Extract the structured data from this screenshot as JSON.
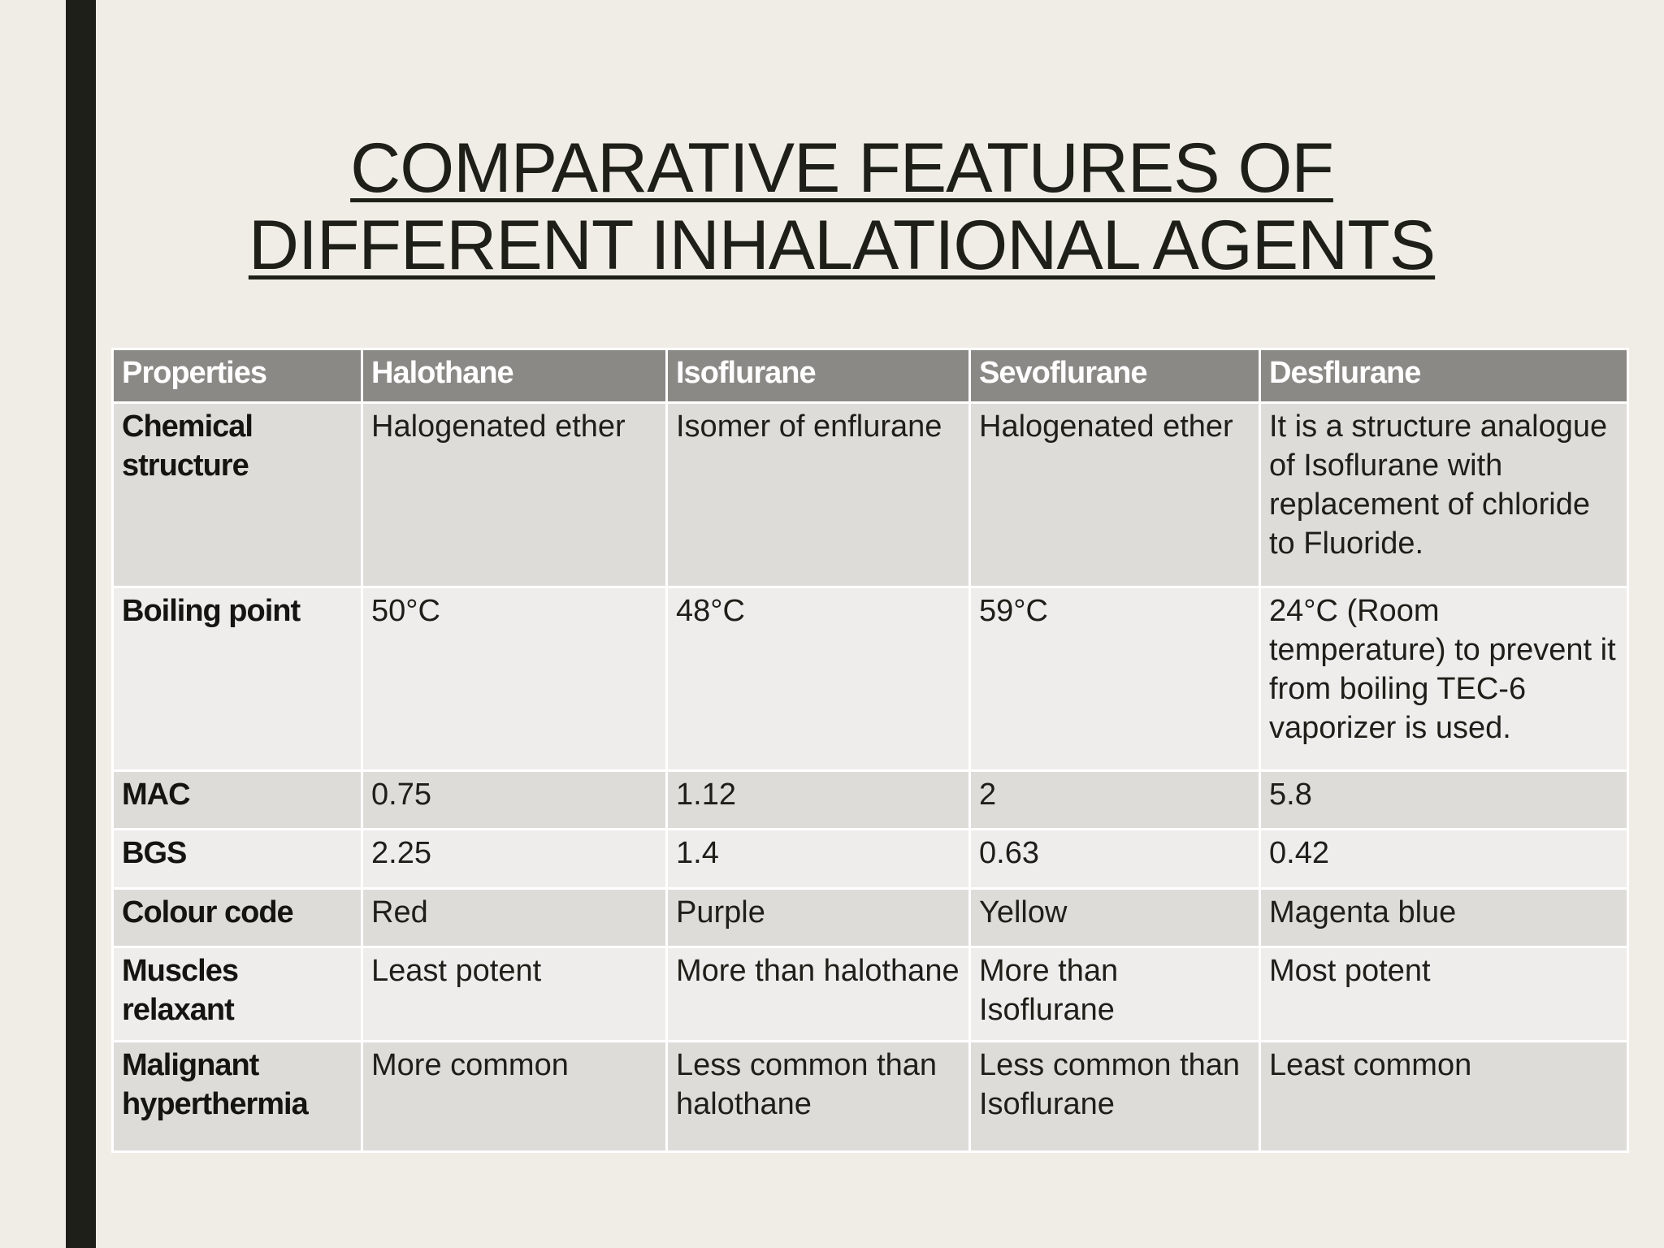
{
  "title": "COMPARATIVE FEATURES OF DIFFERENT INHALATIONAL AGENTS",
  "table": {
    "header": [
      "Properties",
      "Halothane",
      "Isoflurane",
      "Sevoflurane",
      "Desflurane"
    ],
    "rows": [
      [
        "Chemical structure",
        "Halogenated ether",
        "Isomer of enflurane",
        "Halogenated ether",
        "It is a structure analogue of Isoflurane with replacement of chloride to Fluoride."
      ],
      [
        "Boiling point",
        "50°C",
        "48°C",
        "59°C",
        "24°C (Room temperature) to prevent it from boiling TEC-6 vaporizer is used."
      ],
      [
        "MAC",
        "0.75",
        "1.12",
        "2",
        "5.8"
      ],
      [
        "BGS",
        "2.25",
        "1.4",
        "0.63",
        "0.42"
      ],
      [
        "Colour code",
        "Red",
        "Purple",
        "Yellow",
        "Magenta blue"
      ],
      [
        "Muscles relaxant",
        "Least potent",
        "More than halothane",
        "More than Isoflurane",
        "Most potent"
      ],
      [
        "Malignant hyperthermia",
        "More common",
        "Less common than halothane",
        "Less common than Isoflurane",
        "Least common"
      ]
    ]
  }
}
